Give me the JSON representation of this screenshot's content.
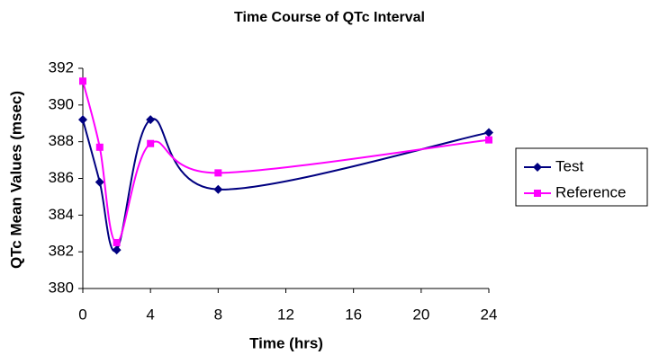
{
  "chart_data": {
    "type": "line",
    "title": "Time Course of QTc Interval",
    "x_label": "Time (hrs)",
    "y_label": "QTc Mean Values (msec)",
    "x": [
      0,
      1,
      2,
      4,
      8,
      24
    ],
    "series": [
      {
        "name": "Test",
        "color": "#000080",
        "marker": "diamond",
        "values": [
          389.2,
          385.8,
          382.1,
          389.2,
          385.4,
          388.5
        ]
      },
      {
        "name": "Reference",
        "color": "#ff00ff",
        "marker": "square",
        "values": [
          391.3,
          387.7,
          382.5,
          387.9,
          386.3,
          388.1
        ]
      }
    ],
    "xlim": [
      0,
      24
    ],
    "xticks": [
      0,
      4,
      8,
      12,
      16,
      20,
      24
    ],
    "ylim": [
      380,
      392
    ],
    "yticks": [
      380,
      382,
      384,
      386,
      388,
      390,
      392
    ],
    "smooth": true,
    "grid": false,
    "legend": "right"
  }
}
